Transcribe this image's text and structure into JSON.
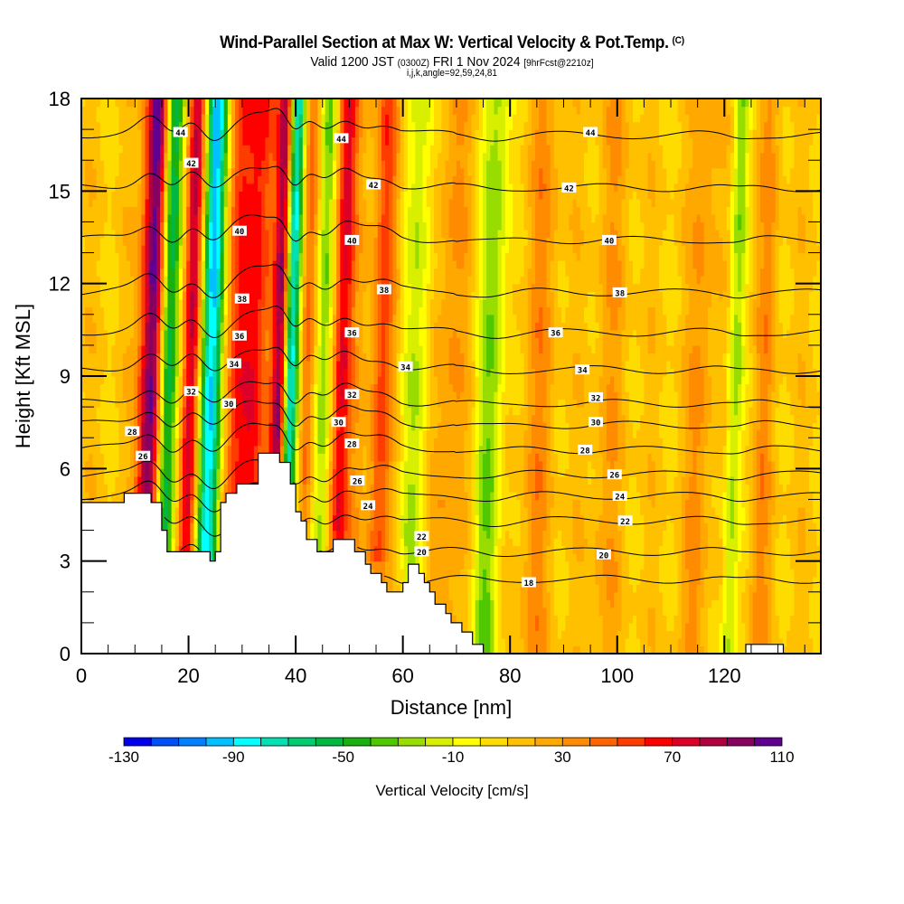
{
  "header": {
    "title": "Wind-Parallel Section at Max W: Vertical Velocity & Pot.Temp.",
    "copyright_mark": "(C)",
    "valid_prefix": "Valid 1200 JST",
    "valid_utc": "(0300Z)",
    "valid_date": "FRI 1 Nov 2024",
    "forecast": "[9hrFcst@2210z]",
    "indices": "i,j,k,angle=92,59,24,81"
  },
  "chart_data": {
    "type": "heatmap",
    "title": "Wind-Parallel Section at Max W: Vertical Velocity & Pot.Temp.",
    "xlabel": "Distance [nm]",
    "ylabel": "Height [Kft MSL]",
    "xlim": [
      0,
      138
    ],
    "ylim": [
      0,
      18
    ],
    "xticks": [
      0,
      20,
      40,
      60,
      80,
      100,
      120
    ],
    "xtick_labels": [
      "0",
      "20",
      "40",
      "60",
      "80",
      "100",
      "120"
    ],
    "yticks": [
      0,
      3,
      6,
      9,
      12,
      15,
      18
    ],
    "ytick_labels": [
      "0",
      "3",
      "6",
      "9",
      "12",
      "15",
      "18"
    ],
    "grid": false,
    "colorbar": {
      "title": "Vertical Velocity [cm/s]",
      "bounds": [
        -130,
        110
      ],
      "step": 10,
      "tick_values": [
        -130,
        -90,
        -50,
        -10,
        30,
        70,
        110
      ],
      "tick_labels": [
        "-130",
        "-90",
        "-50",
        "-10",
        "30",
        "70",
        "110"
      ],
      "colors": [
        "#0000ee",
        "#0050f5",
        "#0080ff",
        "#00c0ff",
        "#00ffff",
        "#00e0b0",
        "#00cc70",
        "#00b840",
        "#1ab010",
        "#50c800",
        "#98dc00",
        "#d8f000",
        "#ffff00",
        "#ffdc00",
        "#ffc000",
        "#ffa800",
        "#ff8c00",
        "#ff6400",
        "#ff3c00",
        "#ff0000",
        "#dc0028",
        "#b00040",
        "#880060",
        "#600090"
      ]
    },
    "vertical_velocity_bands": [
      {
        "x": 13.5,
        "w": 100,
        "width_nm": 2.2
      },
      {
        "x": 16.5,
        "w": -80,
        "width_nm": 2.0
      },
      {
        "x": 21.0,
        "w": 80,
        "width_nm": 1.8
      },
      {
        "x": 24.5,
        "w": -110,
        "width_nm": 2.4
      },
      {
        "x": 29.0,
        "w": 40,
        "width_nm": 3.0
      },
      {
        "x": 33.0,
        "w": 50,
        "width_nm": 2.5
      },
      {
        "x": 37.5,
        "w": 80,
        "width_nm": 1.5
      },
      {
        "x": 39.5,
        "w": -100,
        "width_nm": 1.4
      },
      {
        "x": 42.5,
        "w": 30,
        "width_nm": 1.5
      },
      {
        "x": 45.5,
        "w": -40,
        "width_nm": 1.8
      },
      {
        "x": 49.0,
        "w": 60,
        "width_nm": 1.8
      },
      {
        "x": 52.5,
        "w": 10,
        "width_nm": 2.0
      },
      {
        "x": 56.5,
        "w": 40,
        "width_nm": 2.0
      },
      {
        "x": 63.0,
        "w": -30,
        "width_nm": 2.5
      },
      {
        "x": 69.0,
        "w": 20,
        "width_nm": 3.0
      },
      {
        "x": 77.0,
        "w": -40,
        "width_nm": 2.5
      },
      {
        "x": 86.0,
        "w": 20,
        "width_nm": 3.0
      },
      {
        "x": 99.0,
        "w": 15,
        "width_nm": 3.0
      },
      {
        "x": 116.0,
        "w": 20,
        "width_nm": 2.5
      },
      {
        "x": 122.5,
        "w": -35,
        "width_nm": 1.5
      },
      {
        "x": 128.0,
        "w": 20,
        "width_nm": 2.0
      }
    ],
    "terrain": [
      [
        0,
        4.9
      ],
      [
        8,
        4.9
      ],
      [
        8,
        5.2
      ],
      [
        13,
        5.2
      ],
      [
        13,
        4.9
      ],
      [
        15,
        4.9
      ],
      [
        15,
        4.0
      ],
      [
        16,
        4.0
      ],
      [
        16,
        3.3
      ],
      [
        24,
        3.3
      ],
      [
        24,
        3.0
      ],
      [
        25,
        3.0
      ],
      [
        25,
        3.3
      ],
      [
        26,
        3.3
      ],
      [
        26,
        4.9
      ],
      [
        27,
        4.9
      ],
      [
        27,
        5.2
      ],
      [
        29,
        5.2
      ],
      [
        29,
        5.5
      ],
      [
        33,
        5.5
      ],
      [
        33,
        6.5
      ],
      [
        37,
        6.5
      ],
      [
        37,
        6.2
      ],
      [
        39,
        6.2
      ],
      [
        39,
        5.5
      ],
      [
        40,
        5.5
      ],
      [
        40,
        4.6
      ],
      [
        41,
        4.6
      ],
      [
        41,
        4.3
      ],
      [
        42,
        4.3
      ],
      [
        42,
        3.7
      ],
      [
        44,
        3.7
      ],
      [
        44,
        3.3
      ],
      [
        47,
        3.3
      ],
      [
        47,
        3.7
      ],
      [
        51,
        3.7
      ],
      [
        51,
        3.3
      ],
      [
        53,
        3.3
      ],
      [
        53,
        2.9
      ],
      [
        54,
        2.9
      ],
      [
        54,
        2.6
      ],
      [
        56,
        2.6
      ],
      [
        56,
        2.3
      ],
      [
        57,
        2.3
      ],
      [
        57,
        2.0
      ],
      [
        60,
        2.0
      ],
      [
        60,
        2.3
      ],
      [
        61,
        2.3
      ],
      [
        61,
        2.9
      ],
      [
        63,
        2.9
      ],
      [
        63,
        2.6
      ],
      [
        64,
        2.6
      ],
      [
        64,
        2.3
      ],
      [
        65,
        2.3
      ],
      [
        65,
        2.0
      ],
      [
        66,
        2.0
      ],
      [
        66,
        1.6
      ],
      [
        68,
        1.6
      ],
      [
        68,
        1.3
      ],
      [
        69,
        1.3
      ],
      [
        69,
        1.0
      ],
      [
        71,
        1.0
      ],
      [
        71,
        0.7
      ],
      [
        73,
        0.7
      ],
      [
        73,
        0.3
      ],
      [
        75,
        0.3
      ],
      [
        75,
        0.0
      ],
      [
        124,
        0.0
      ],
      [
        124,
        0.3
      ],
      [
        131,
        0.3
      ],
      [
        131,
        0.0
      ],
      [
        138,
        0.0
      ]
    ],
    "theta_contours": [
      {
        "label": "44",
        "height": 16.8
      },
      {
        "label": "42",
        "height": 15.1
      },
      {
        "label": "40",
        "height": 13.4
      },
      {
        "label": "38",
        "height": 11.7
      },
      {
        "label": "36",
        "height": 10.4
      },
      {
        "label": "34",
        "height": 9.2
      },
      {
        "label": "32",
        "height": 8.1
      },
      {
        "label": "30",
        "height": 7.4
      },
      {
        "label": "28",
        "height": 6.6
      },
      {
        "label": "26",
        "height": 5.8
      },
      {
        "label": "24",
        "height": 5.1
      },
      {
        "label": "22",
        "height": 4.3
      },
      {
        "label": "20",
        "height": 3.3
      },
      {
        "label": "18",
        "height": 2.4
      }
    ],
    "contour_labels": [
      {
        "text": "44",
        "x": 18.5,
        "y": 16.9
      },
      {
        "text": "42",
        "x": 20.5,
        "y": 15.9
      },
      {
        "text": "40",
        "x": 29.5,
        "y": 13.7
      },
      {
        "text": "38",
        "x": 30.0,
        "y": 11.5
      },
      {
        "text": "36",
        "x": 29.5,
        "y": 10.3
      },
      {
        "text": "34",
        "x": 28.5,
        "y": 9.4
      },
      {
        "text": "32",
        "x": 20.5,
        "y": 8.5
      },
      {
        "text": "30",
        "x": 27.5,
        "y": 8.1
      },
      {
        "text": "28",
        "x": 9.5,
        "y": 7.2
      },
      {
        "text": "26",
        "x": 11.5,
        "y": 6.4
      },
      {
        "text": "44",
        "x": 48.5,
        "y": 16.7
      },
      {
        "text": "42",
        "x": 54.5,
        "y": 15.2
      },
      {
        "text": "40",
        "x": 50.5,
        "y": 13.4
      },
      {
        "text": "38",
        "x": 56.5,
        "y": 11.8
      },
      {
        "text": "36",
        "x": 50.5,
        "y": 10.4
      },
      {
        "text": "34",
        "x": 60.5,
        "y": 9.3
      },
      {
        "text": "32",
        "x": 50.5,
        "y": 8.4
      },
      {
        "text": "30",
        "x": 48.0,
        "y": 7.5
      },
      {
        "text": "28",
        "x": 50.5,
        "y": 6.8
      },
      {
        "text": "26",
        "x": 51.5,
        "y": 5.6
      },
      {
        "text": "24",
        "x": 53.5,
        "y": 4.8
      },
      {
        "text": "22",
        "x": 63.5,
        "y": 3.8
      },
      {
        "text": "20",
        "x": 63.5,
        "y": 3.3
      },
      {
        "text": "44",
        "x": 95.0,
        "y": 16.9
      },
      {
        "text": "42",
        "x": 91.0,
        "y": 15.1
      },
      {
        "text": "40",
        "x": 98.5,
        "y": 13.4
      },
      {
        "text": "38",
        "x": 100.5,
        "y": 11.7
      },
      {
        "text": "36",
        "x": 88.5,
        "y": 10.4
      },
      {
        "text": "34",
        "x": 93.5,
        "y": 9.2
      },
      {
        "text": "32",
        "x": 96.0,
        "y": 8.3
      },
      {
        "text": "30",
        "x": 96.0,
        "y": 7.5
      },
      {
        "text": "28",
        "x": 94.0,
        "y": 6.6
      },
      {
        "text": "26",
        "x": 99.5,
        "y": 5.8
      },
      {
        "text": "24",
        "x": 100.5,
        "y": 5.1
      },
      {
        "text": "22",
        "x": 101.5,
        "y": 4.3
      },
      {
        "text": "20",
        "x": 97.5,
        "y": 3.2
      },
      {
        "text": "18",
        "x": 83.5,
        "y": 2.3
      }
    ]
  }
}
